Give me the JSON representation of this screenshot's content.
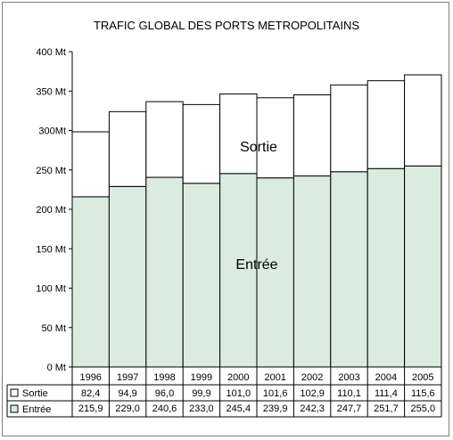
{
  "chart_data": {
    "type": "bar",
    "stacked": true,
    "title": "TRAFIC GLOBAL DES PORTS METROPOLITAINS",
    "categories": [
      "1996",
      "1997",
      "1998",
      "1999",
      "2000",
      "2001",
      "2002",
      "2003",
      "2004",
      "2005"
    ],
    "y_tick_labels": [
      "0 Mt",
      "50 Mt",
      "100 Mt",
      "150 Mt",
      "200 Mt",
      "250 Mt",
      "300Mt",
      "350 Mt",
      "400 Mt"
    ],
    "ylim": [
      0,
      400
    ],
    "series": [
      {
        "name": "Entrée",
        "color": "#d9ecdf",
        "values": [
          215.9,
          229.0,
          240.6,
          233.0,
          245.4,
          239.9,
          242.3,
          247.7,
          251.7,
          255.0
        ],
        "display_values": [
          "215,9",
          "229,0",
          "240,6",
          "233,0",
          "245,4",
          "239,9",
          "242,3",
          "247,7",
          "251,7",
          "255,0"
        ]
      },
      {
        "name": "Sortie",
        "color": "#ffffff",
        "values": [
          82.4,
          94.9,
          96.0,
          99.9,
          101.0,
          101.6,
          102.9,
          110.1,
          111.4,
          115.6
        ],
        "display_values": [
          "82,4",
          "94,9",
          "96,0",
          "99,9",
          "101,0",
          "101,6",
          "102,9",
          "110,1",
          "111,4",
          "115,6"
        ]
      }
    ],
    "annotations": [
      "Sortie",
      "Entrée"
    ],
    "grid": false
  }
}
